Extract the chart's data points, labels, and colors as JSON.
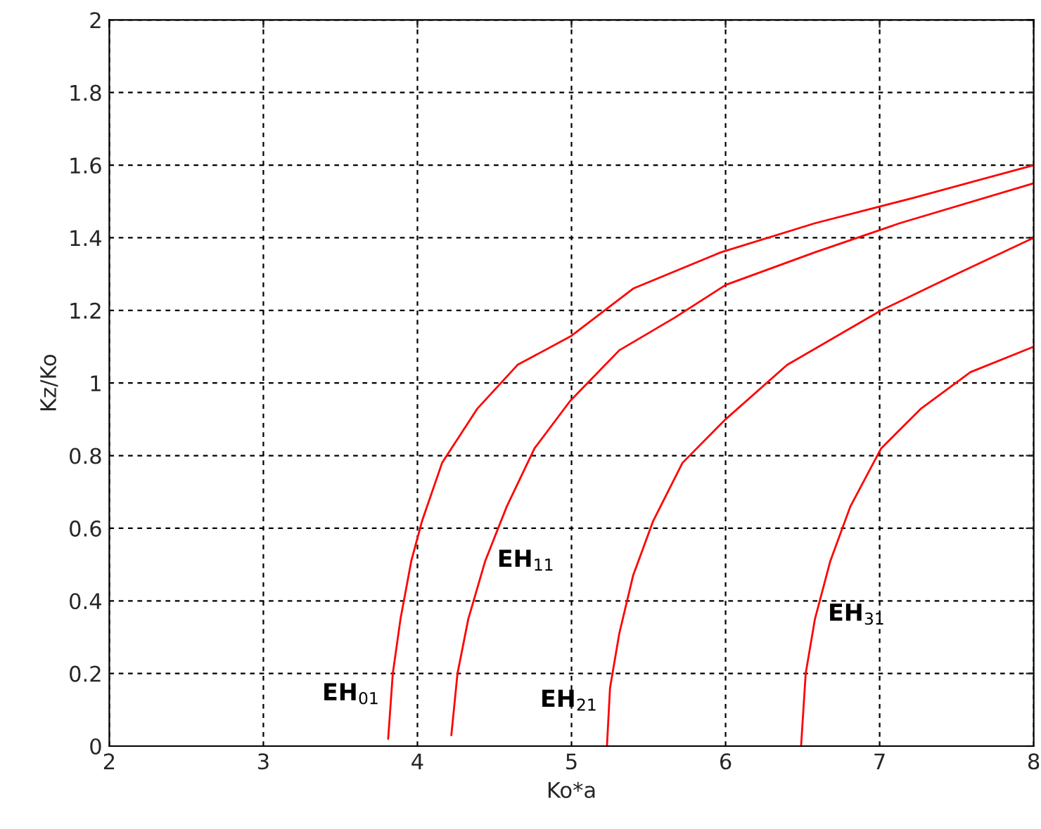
{
  "chart_data": {
    "type": "line",
    "xlabel": "Ko*a",
    "ylabel": "Kz/Ko",
    "series": [
      {
        "color": "#ff0000",
        "x": [
          3.81,
          3.84,
          3.89,
          3.96,
          4.03,
          4.16,
          4.39,
          4.65,
          5.0,
          5.4,
          5.97,
          6.58,
          7.22,
          8.0
        ],
        "values": [
          0.02,
          0.2,
          0.35,
          0.51,
          0.62,
          0.78,
          0.93,
          1.05,
          1.13,
          1.26,
          1.36,
          1.44,
          1.51,
          1.6
        ]
      },
      {
        "color": "#ff0000",
        "x": [
          4.22,
          4.26,
          4.33,
          4.44,
          4.58,
          4.76,
          4.99,
          5.31,
          5.67,
          6.0,
          6.58,
          7.13,
          8.0
        ],
        "values": [
          0.03,
          0.2,
          0.35,
          0.51,
          0.66,
          0.82,
          0.95,
          1.09,
          1.18,
          1.27,
          1.36,
          1.44,
          1.55
        ]
      },
      {
        "color": "#ff0000",
        "x": [
          5.23,
          5.25,
          5.31,
          5.4,
          5.53,
          5.72,
          6.0,
          6.4,
          7.01,
          7.5,
          8.0
        ],
        "values": [
          0.0,
          0.16,
          0.31,
          0.47,
          0.62,
          0.78,
          0.9,
          1.05,
          1.2,
          1.3,
          1.4
        ]
      },
      {
        "color": "#ff0000",
        "x": [
          6.49,
          6.52,
          6.58,
          6.68,
          6.81,
          7.01,
          7.27,
          7.59,
          8.0
        ],
        "values": [
          0.0,
          0.2,
          0.35,
          0.51,
          0.66,
          0.82,
          0.93,
          1.03,
          1.1
        ]
      }
    ],
    "annotations": [
      "EH$_{01}$",
      "EH$_{11}$",
      "EH$_{21}$",
      "EH$_{31}$"
    ],
    "xlim": [
      2,
      8
    ],
    "xticks": [
      2,
      3,
      4,
      5,
      6,
      7,
      8
    ],
    "ylim": [
      0,
      2
    ],
    "yticks": [
      0,
      0.2,
      0.4,
      0.6,
      0.8,
      1,
      1.2,
      1.4,
      1.6,
      1.8,
      2
    ],
    "grid": true,
    "line_style": "solid"
  }
}
